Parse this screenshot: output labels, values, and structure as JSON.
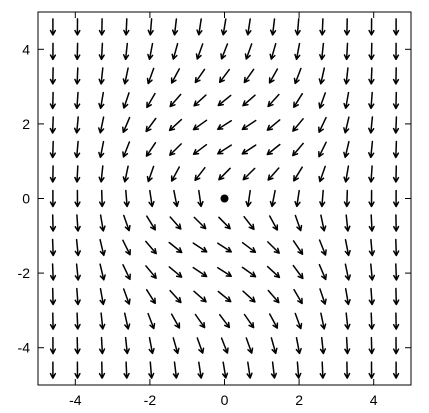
{
  "chart_data": {
    "type": "vector_field",
    "title": "",
    "xlabel": "",
    "ylabel": "",
    "xlim": [
      -5,
      5
    ],
    "ylim": [
      -5,
      5
    ],
    "x_ticks": [
      -4,
      -2,
      0,
      2,
      4
    ],
    "y_ticks": [
      -4,
      -2,
      0,
      2,
      4
    ],
    "x_tick_labels": [
      "-4",
      "-2",
      "0",
      "2",
      "4"
    ],
    "y_tick_labels": [
      "-4",
      "-2",
      "0",
      "2",
      "4"
    ],
    "grid": false,
    "grid_range": [
      -4.6,
      4.6
    ],
    "grid_count": 15,
    "field": "dx/dt = -y·exp(-0.18(x²+y²)) − 0.25·x·exp(-0.3(x²+y²)), dy/dt = −1 (approximate reading of arrow directions)",
    "equilibrium_point": {
      "x": 0,
      "y": 0
    },
    "arrow_color": "#000000",
    "background": "#ffffff"
  }
}
